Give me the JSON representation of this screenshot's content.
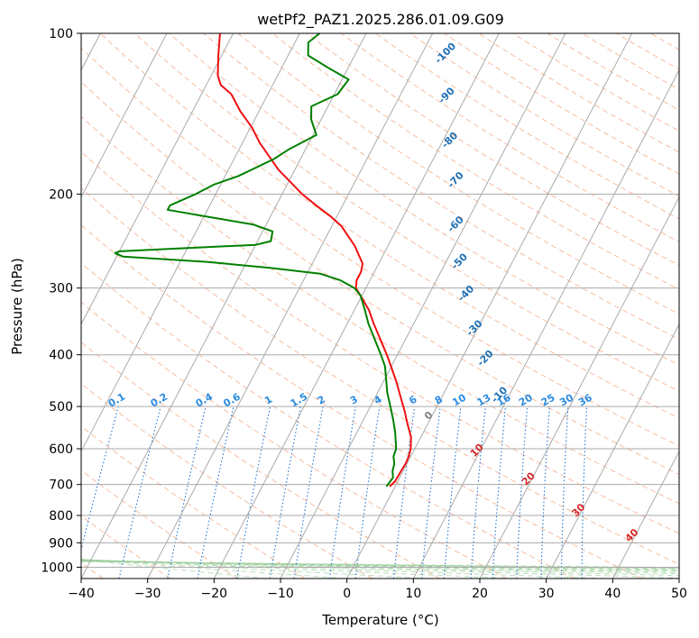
{
  "chart_data": {
    "type": "skew-t",
    "title": "wetPf2_PAZ1.2025.286.01.09.G09",
    "xlabel": "Temperature (°C)",
    "ylabel": "Pressure (hPa)",
    "xlim": [
      -40,
      50
    ],
    "ylim": [
      1050,
      100
    ],
    "x_ticks": [
      "−40",
      "−30",
      "−20",
      "−10",
      "0",
      "10",
      "20",
      "30",
      "40",
      "50"
    ],
    "x_tick_values": [
      -40,
      -30,
      -20,
      -10,
      0,
      10,
      20,
      30,
      40,
      50
    ],
    "y_ticks": [
      "100",
      "200",
      "300",
      "400",
      "500",
      "600",
      "700",
      "800",
      "900",
      "1000"
    ],
    "y_tick_values": [
      100,
      200,
      300,
      400,
      500,
      600,
      700,
      800,
      900,
      1000
    ],
    "skew_deg_per_log_decade": 42,
    "mixing_ratio_labels": [
      "0.1",
      "0.2",
      "0.4",
      "0.6",
      "1",
      "1.5",
      "2",
      "3",
      "4",
      "6",
      "8",
      "10",
      "13",
      "16",
      "20",
      "25",
      "30",
      "36"
    ],
    "mixing_ratio_values": [
      0.1,
      0.2,
      0.4,
      0.6,
      1,
      1.5,
      2,
      3,
      4,
      6,
      8,
      10,
      13,
      16,
      20,
      25,
      30,
      36
    ],
    "mixing_ratio_label_level_hPa": 500,
    "dry_adiabat_labels": [
      "-100",
      "-90",
      "-80",
      "-70",
      "-60",
      "-50",
      "-40",
      "-30",
      "-20",
      "-10"
    ],
    "dry_adiabat_label_points": [
      {
        "label": "-100",
        "T": -26,
        "p": 110
      },
      {
        "label": "-90",
        "T": -22.5,
        "p": 132
      },
      {
        "label": "-80",
        "T": -18.5,
        "p": 160
      },
      {
        "label": "-70",
        "T": -14.5,
        "p": 190
      },
      {
        "label": "-60",
        "T": -11,
        "p": 230
      },
      {
        "label": "-50",
        "T": -7.5,
        "p": 270
      },
      {
        "label": "-40",
        "T": -4,
        "p": 310
      },
      {
        "label": "-30",
        "T": 0,
        "p": 360
      },
      {
        "label": "-20",
        "T": 4,
        "p": 410
      },
      {
        "label": "-10",
        "T": 9,
        "p": 480
      }
    ],
    "moist_adiabat_labels": [
      "0",
      "10",
      "20",
      "30",
      "40"
    ],
    "moist_adiabat_label_points": [
      {
        "label": "0",
        "T": 0,
        "p": 525
      },
      {
        "label": "10",
        "T": 10,
        "p": 610
      },
      {
        "label": "20",
        "T": 20,
        "p": 690
      },
      {
        "label": "30",
        "T": 30,
        "p": 790
      },
      {
        "label": "40",
        "T": 40,
        "p": 880
      }
    ],
    "series": [
      {
        "name": "Temperature",
        "color": "#ee1111",
        "points": [
          [
            706,
            -0.8
          ],
          [
            690,
            -0.4
          ],
          [
            660,
            -0.3
          ],
          [
            640,
            -0.2
          ],
          [
            620,
            -0.3
          ],
          [
            600,
            -0.6
          ],
          [
            570,
            -1.5
          ],
          [
            540,
            -3.0
          ],
          [
            510,
            -4.5
          ],
          [
            480,
            -6.2
          ],
          [
            450,
            -8.0
          ],
          [
            420,
            -10.1
          ],
          [
            400,
            -11.6
          ],
          [
            380,
            -13.3
          ],
          [
            350,
            -16.0
          ],
          [
            330,
            -17.8
          ],
          [
            310,
            -20.2
          ],
          [
            300,
            -21.5
          ],
          [
            290,
            -22.0
          ],
          [
            280,
            -22.0
          ],
          [
            270,
            -22.4
          ],
          [
            250,
            -25.0
          ],
          [
            230,
            -28.5
          ],
          [
            220,
            -31.0
          ],
          [
            210,
            -34.0
          ],
          [
            200,
            -37.0
          ],
          [
            180,
            -42.5
          ],
          [
            160,
            -47.5
          ],
          [
            150,
            -49.8
          ],
          [
            140,
            -52.8
          ],
          [
            130,
            -55.5
          ],
          [
            125,
            -57.8
          ],
          [
            120,
            -59.0
          ],
          [
            110,
            -60.5
          ],
          [
            100,
            -62.0
          ]
        ]
      },
      {
        "name": "Dewpoint",
        "color": "#008000",
        "points": [
          [
            706,
            -1.3
          ],
          [
            680,
            -1.0
          ],
          [
            660,
            -1.6
          ],
          [
            640,
            -1.9
          ],
          [
            620,
            -2.6
          ],
          [
            600,
            -2.8
          ],
          [
            560,
            -4.2
          ],
          [
            530,
            -5.5
          ],
          [
            500,
            -7.0
          ],
          [
            470,
            -8.6
          ],
          [
            440,
            -10.0
          ],
          [
            420,
            -11.0
          ],
          [
            400,
            -12.5
          ],
          [
            370,
            -15.0
          ],
          [
            350,
            -16.8
          ],
          [
            330,
            -18.4
          ],
          [
            310,
            -20.2
          ],
          [
            300,
            -21.7
          ],
          [
            290,
            -24.5
          ],
          [
            282,
            -28.0
          ],
          [
            275,
            -36.0
          ],
          [
            268,
            -46.0
          ],
          [
            262,
            -59.0
          ],
          [
            258,
            -60.5
          ],
          [
            256,
            -60.0
          ],
          [
            249,
            -40.0
          ],
          [
            245,
            -38.0
          ],
          [
            235,
            -38.5
          ],
          [
            228,
            -42.0
          ],
          [
            220,
            -50.0
          ],
          [
            214,
            -56.0
          ],
          [
            210,
            -56.0
          ],
          [
            200,
            -53.0
          ],
          [
            192,
            -51.0
          ],
          [
            185,
            -48.0
          ],
          [
            172,
            -44.0
          ],
          [
            165,
            -42.5
          ],
          [
            155,
            -39.5
          ],
          [
            145,
            -41.5
          ],
          [
            137,
            -42.5
          ],
          [
            130,
            -39.5
          ],
          [
            122,
            -39.0
          ],
          [
            116,
            -43.0
          ],
          [
            110,
            -47.0
          ],
          [
            104,
            -48.0
          ],
          [
            100,
            -47.0
          ]
        ]
      }
    ]
  }
}
